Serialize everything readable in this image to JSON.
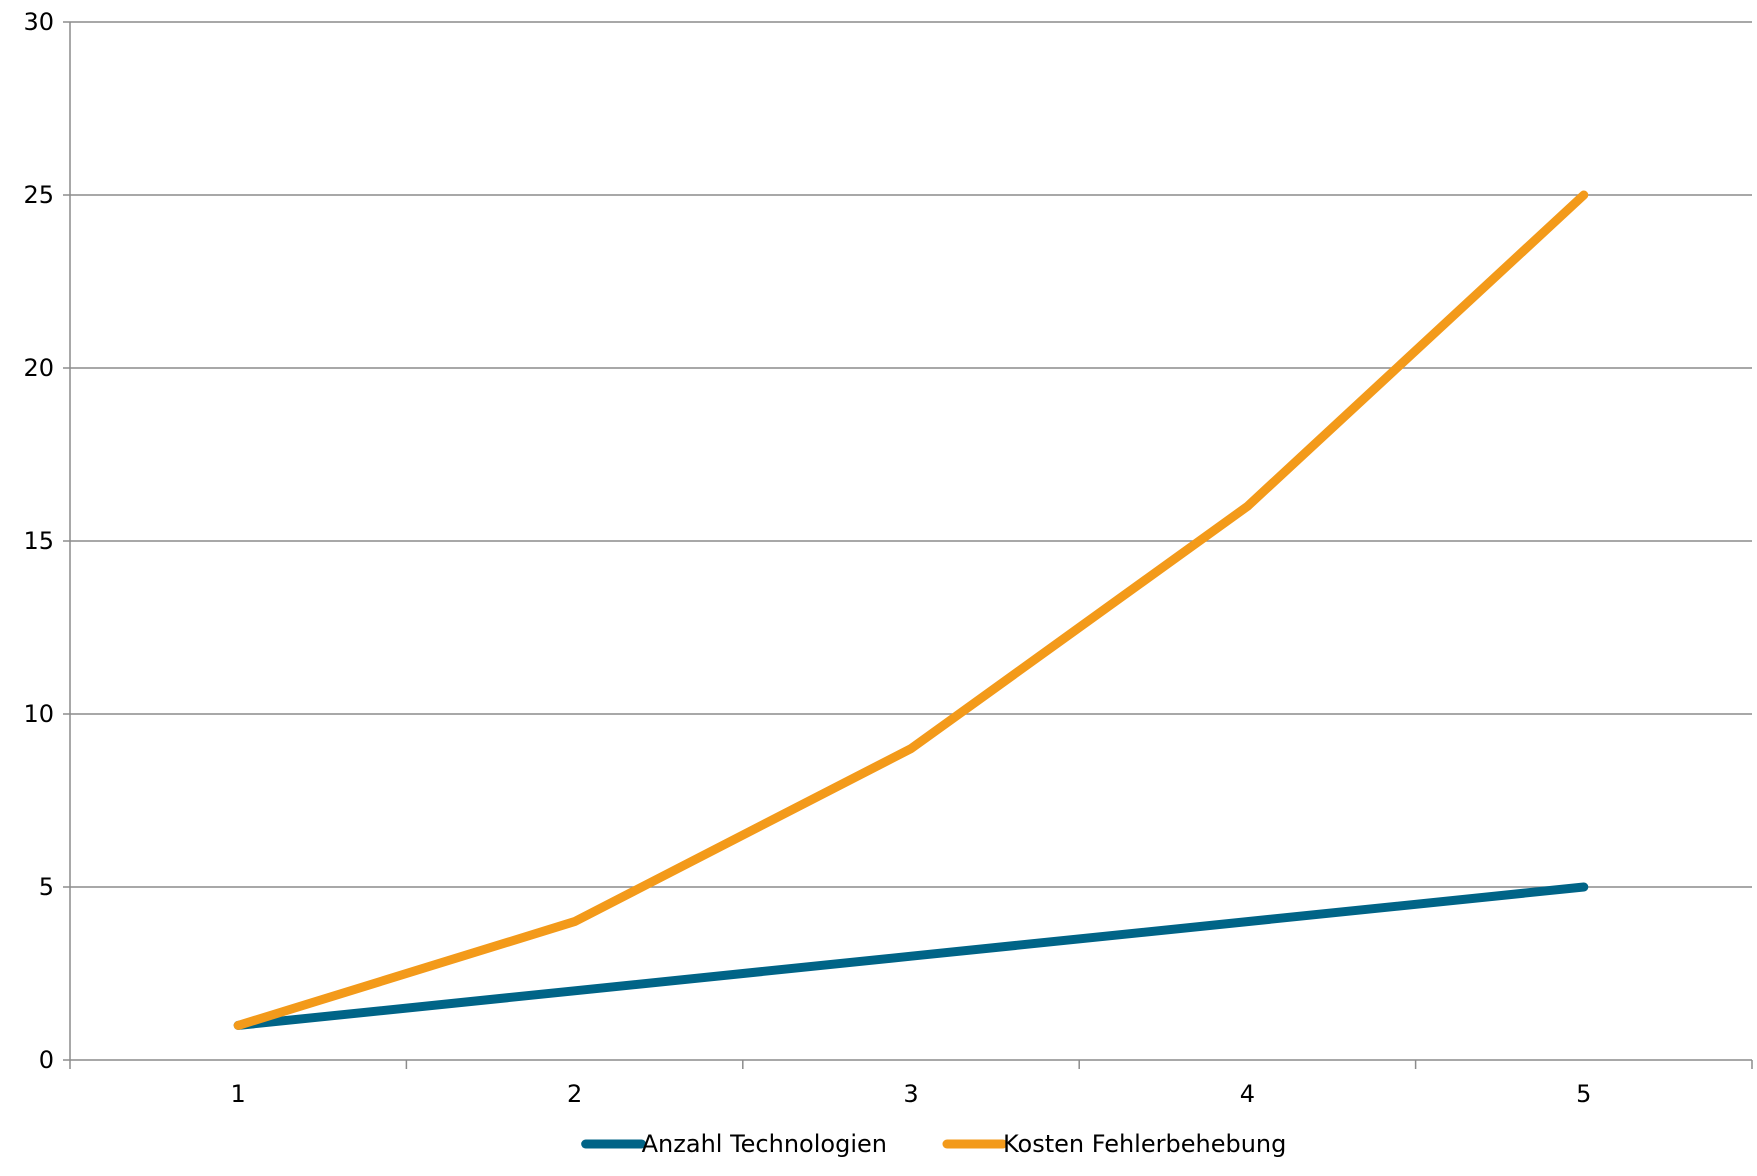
{
  "chart_data": {
    "type": "line",
    "title": "",
    "xlabel": "",
    "ylabel": "",
    "x": [
      1,
      2,
      3,
      4,
      5
    ],
    "x_tick_labels": [
      "1",
      "2",
      "3",
      "4",
      "5"
    ],
    "ylim": [
      0,
      30
    ],
    "y_ticks": [
      0,
      5,
      10,
      15,
      20,
      25,
      30
    ],
    "y_tick_labels": [
      "0",
      "5",
      "10",
      "15",
      "20",
      "25",
      "30"
    ],
    "grid": "horizontal",
    "legend_position": "bottom",
    "series": [
      {
        "name": "Anzahl Technologien",
        "color": "#006487",
        "values": [
          1,
          2,
          3,
          4,
          5
        ]
      },
      {
        "name": "Kosten Fehlerbehebung",
        "color": "#F39A1A",
        "values": [
          1,
          4,
          9,
          16,
          25
        ]
      }
    ]
  }
}
